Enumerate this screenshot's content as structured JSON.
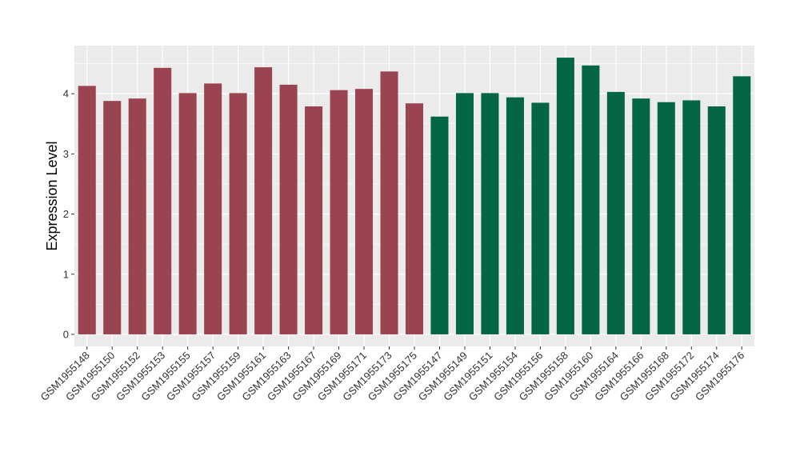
{
  "chart_data": {
    "type": "bar",
    "title": "",
    "xlabel": "",
    "ylabel": "Expression Level",
    "ylim": [
      -0.2,
      4.8
    ],
    "yticks": [
      0,
      1,
      2,
      3,
      4
    ],
    "grid": true,
    "categories": [
      "GSM1955148",
      "GSM1955150",
      "GSM1955152",
      "GSM1955153",
      "GSM1955155",
      "GSM1955157",
      "GSM1955159",
      "GSM1955161",
      "GSM1955163",
      "GSM1955167",
      "GSM1955169",
      "GSM1955171",
      "GSM1955173",
      "GSM1955175",
      "GSM1955147",
      "GSM1955149",
      "GSM1955151",
      "GSM1955154",
      "GSM1955156",
      "GSM1955158",
      "GSM1955160",
      "GSM1955164",
      "GSM1955166",
      "GSM1955168",
      "GSM1955172",
      "GSM1955174",
      "GSM1955176"
    ],
    "values": [
      4.13,
      3.88,
      3.92,
      4.43,
      4.01,
      4.17,
      4.01,
      4.44,
      4.15,
      3.79,
      4.06,
      4.08,
      4.37,
      3.84,
      3.62,
      4.01,
      4.01,
      3.94,
      3.85,
      4.6,
      4.47,
      4.03,
      3.92,
      3.86,
      3.89,
      3.79,
      4.29
    ],
    "groups": [
      0,
      0,
      0,
      0,
      0,
      0,
      0,
      0,
      0,
      0,
      0,
      0,
      0,
      0,
      1,
      1,
      1,
      1,
      1,
      1,
      1,
      1,
      1,
      1,
      1,
      1,
      1
    ],
    "group_colors": [
      "#9b4451",
      "#046645"
    ],
    "panel_background": "#ebebeb",
    "grid_color": "#ffffff"
  }
}
